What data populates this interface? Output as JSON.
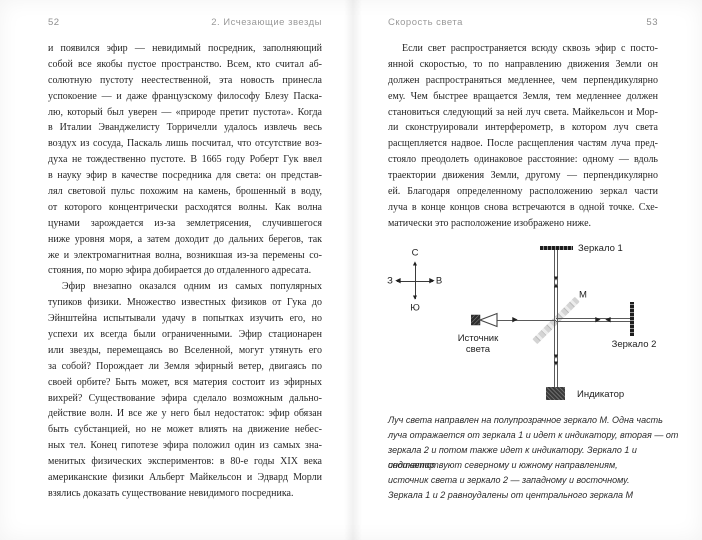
{
  "page_left": {
    "page_number": "52",
    "running_header": "2. Исчезающие звезды",
    "paragraphs": [
      {
        "indent": false,
        "lines": [
          "и появился эфир — невидимый посредник, заполняющий",
          "собой все якобы пустое пространство. Всем, кто считал аб-",
          "солютную пустоту неестественной, эта новость принесла",
          "успокоение — и даже французскому философу Блезу Паска-",
          "лю, который был уверен — «природе претит пустота». Когда",
          "в Италии Эванджелисту Торричелли удалось извлечь весь",
          "воздух из сосуда, Паскаль лишь посчитал, что отсутствие воз-",
          "духа не тождественно пустоте. В 1665 году Роберт Гук ввел",
          "в науку эфир в качестве посредника для света: он представ-",
          "лял световой пульс похожим на камень, брошенный в воду,",
          "от которого концентрически расходятся волны. Как волна",
          "цунами зарождается из-за землетрясения, случившегося",
          "ниже уровня моря, а затем доходит до дальних берегов, так",
          "же и электромагнитная волна, возникшая из-за перемены со-",
          "стояния, по морю эфира добирается до отдаленного адресата."
        ]
      },
      {
        "indent": true,
        "lines": [
          "Эфир внезапно оказался одним из самых популярных",
          "тупиков физики. Множество известных физиков от Гука до",
          "Эйнштейна испытывали удачу в попытках изучить его, но",
          "успехи их всегда были ограниченными. Эфир стационарен",
          "или звезды, перемещаясь во Вселенной, могут утянуть его",
          "за собой? Порождает ли Земля эфирный ветер, двигаясь по",
          "своей орбите? Быть может, вся материя состоит из эфирных",
          "вихрей? Существование эфира сделало возможным дально-",
          "действие волн. И все же у него был недостаток: эфир обязан",
          "быть субстанцией, но не может влиять на движение небес-",
          "ных тел. Конец гипотезе эфира положил один из самых зна-",
          "менитых физических экспериментов: в 80-е годы XIX века",
          "американские физики Альберт Майкельсон и Эдвард Морли",
          "взялись доказать существование невидимого посредника."
        ]
      }
    ]
  },
  "page_right": {
    "page_number": "53",
    "running_header": "Скорость света",
    "paragraphs": [
      {
        "indent": true,
        "lines": [
          "Если свет распространяется всюду сквозь эфир с посто-",
          "янной скоростью, то по направлению движения Земли он",
          "должен распространяться медленнее, чем перпендикулярно",
          "ему. Чем быстрее вращается Земля, тем медленнее должен",
          "становиться следующий за ней луч света. Майкельсон и Мор-",
          "ли сконструировали интерферометр, в котором луч света",
          "расщепляется надвое. После расщепления частям луча пред-",
          "стояло преодолеть одинаковое расстояние: одному — вдоль",
          "траектории движения Земли, другому — перпендикулярно",
          "ей. Благодаря определенному расположению зеркал части",
          "луча в конце концов снова встречаются в одной точке. Схе-",
          "матически это расположение изображено ниже."
        ]
      }
    ],
    "diagram": {
      "compass": {
        "north": "С",
        "east": "В",
        "south": "Ю",
        "west": "З"
      },
      "mirror1_label": "Зеркало 1",
      "mirror2_label": "Зеркало 2",
      "splitter_label": "М",
      "source_label_line1": "Источник",
      "source_label_line2": "света",
      "indicator_label": "Индикатор"
    },
    "caption_lines": [
      "Луч света направлен на полупрозрачное зеркало М. Одна часть",
      "луча отражается от зеркала 1 и идет к индикатору, вторая — от",
      "зеркала 2 и потом также идет к индикатору. Зеркало 1 и индикатор",
      "соответствуют северному и южному направлениям,",
      "источник света и зеркало 2 — западному и восточному.",
      "Зеркала 1 и 2 равноудалены от центрального зеркала М"
    ]
  },
  "icons": {
    "arrow_up": "▲",
    "arrow_down": "▼",
    "arrow_left": "◀",
    "arrow_right": "▶"
  },
  "colors": {
    "header_gray": "#9a9a9a",
    "body_text": "#262626",
    "diagram_line": "#5a5a5a"
  }
}
